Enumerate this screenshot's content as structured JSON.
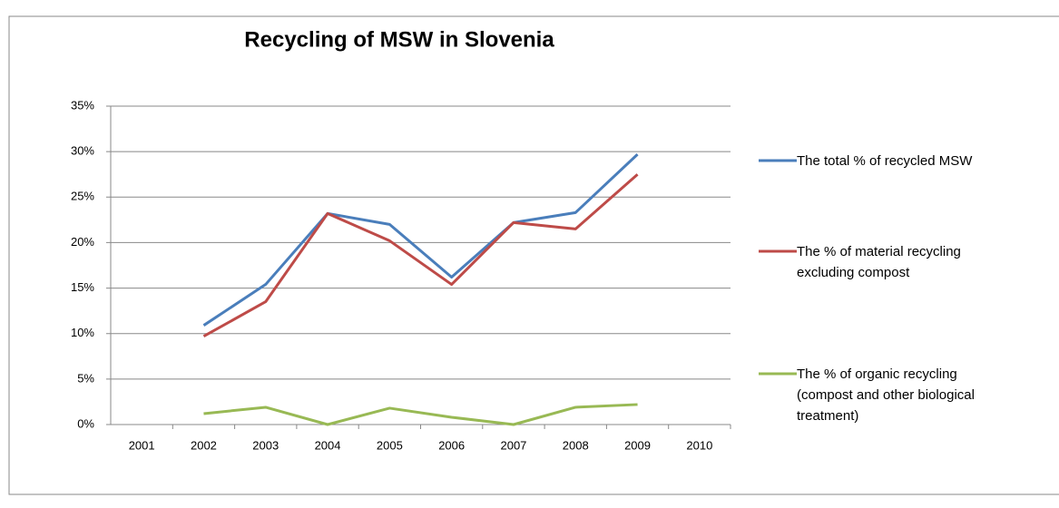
{
  "chart_data": {
    "type": "line",
    "title": "Recycling of MSW in Slovenia",
    "categories": [
      "2001",
      "2002",
      "2003",
      "2004",
      "2005",
      "2006",
      "2007",
      "2008",
      "2009",
      "2010"
    ],
    "series": [
      {
        "name": "The total % of recycled MSW",
        "color": "#4a7ebb",
        "values": [
          null,
          10.9,
          15.4,
          23.2,
          22.0,
          16.2,
          22.2,
          23.3,
          29.7,
          null
        ]
      },
      {
        "name": "The % of material recycling excluding compost",
        "color": "#be4b48",
        "values": [
          null,
          9.7,
          13.5,
          23.2,
          20.2,
          15.4,
          22.2,
          21.5,
          27.5,
          null
        ]
      },
      {
        "name": "The % of organic recycling (compost and other biological treatment)",
        "color": "#98b954",
        "values": [
          null,
          1.2,
          1.9,
          0,
          1.8,
          0.8,
          0,
          1.9,
          2.2,
          null
        ]
      }
    ],
    "ylim": [
      0,
      35
    ],
    "yticks": [
      {
        "value": 0,
        "label": "0%"
      },
      {
        "value": 5,
        "label": "5%"
      },
      {
        "value": 10,
        "label": "10%"
      },
      {
        "value": 15,
        "label": "15%"
      },
      {
        "value": 20,
        "label": "20%"
      },
      {
        "value": 25,
        "label": "25%"
      },
      {
        "value": 30,
        "label": "30%"
      },
      {
        "value": 35,
        "label": "35%"
      }
    ],
    "grid": true,
    "legend": "right"
  }
}
